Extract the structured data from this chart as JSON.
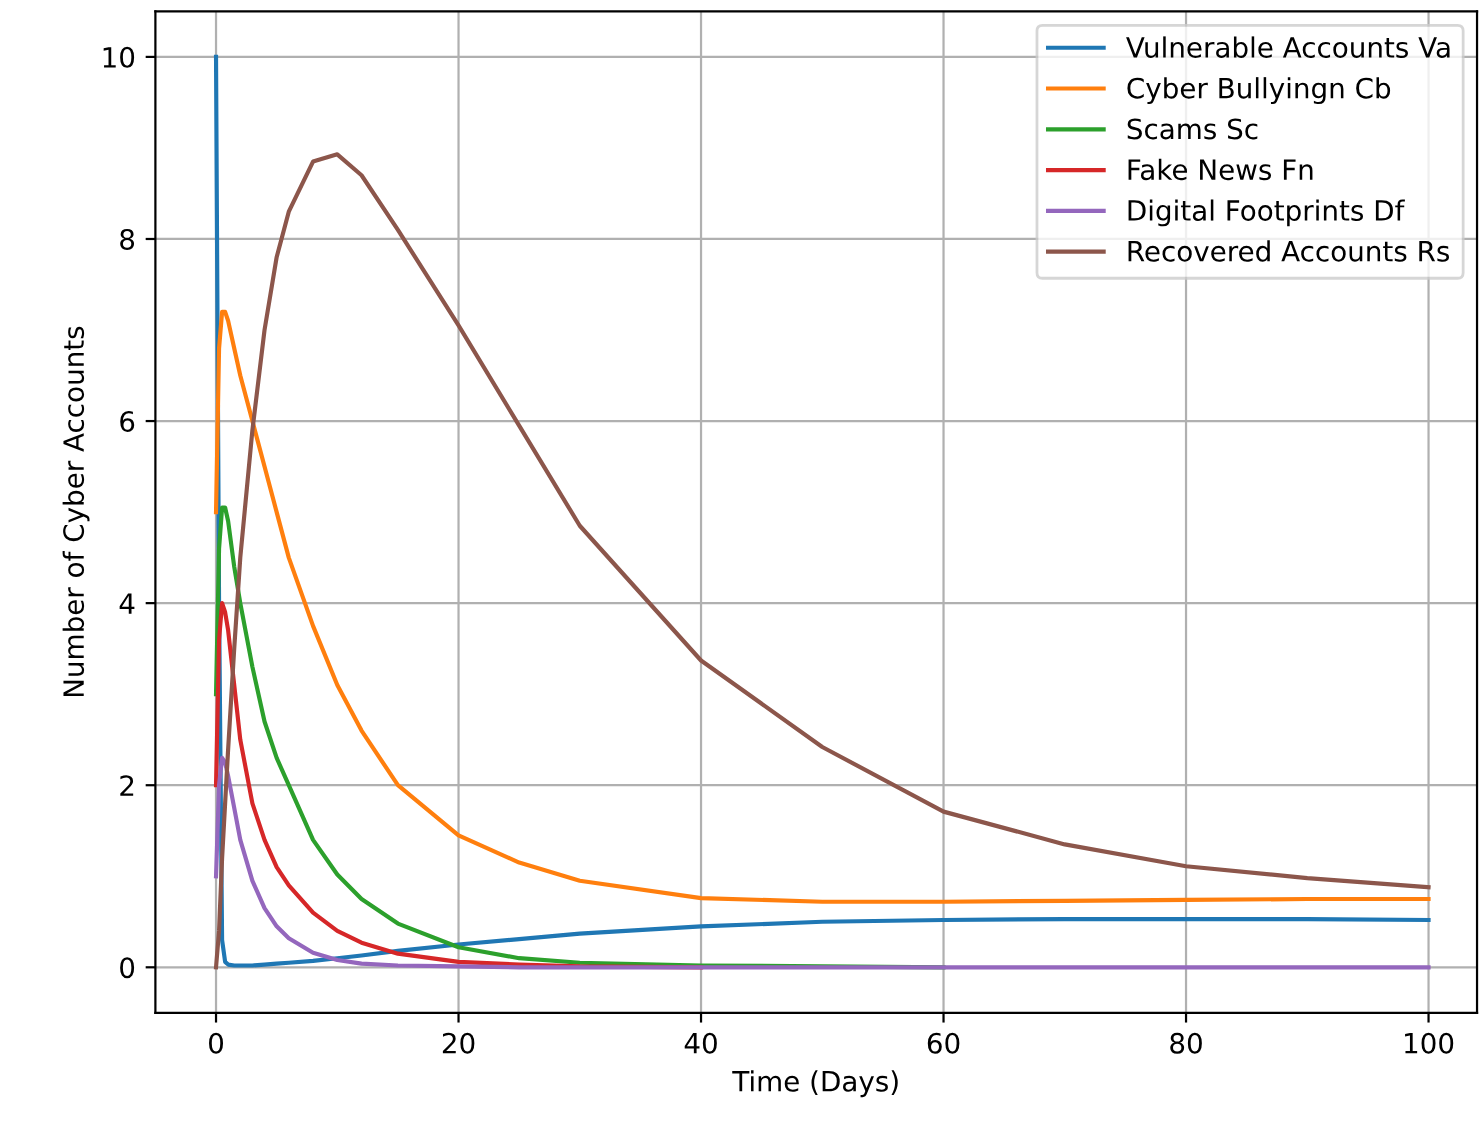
{
  "chart_data": {
    "type": "line",
    "xlabel": "Time (Days)",
    "ylabel": "Number of Cyber Accounts",
    "x": [
      0,
      0.25,
      0.5,
      0.75,
      1,
      1.5,
      2,
      3,
      4,
      5,
      6,
      8,
      10,
      12,
      15,
      20,
      25,
      30,
      40,
      50,
      60,
      70,
      80,
      90,
      100
    ],
    "series": [
      {
        "name": "Vulnerable Accounts Va",
        "color": "#1f77b4",
        "values": [
          10,
          4,
          0.3,
          0.06,
          0.03,
          0.02,
          0.02,
          0.02,
          0.03,
          0.04,
          0.05,
          0.07,
          0.1,
          0.13,
          0.18,
          0.25,
          0.31,
          0.37,
          0.45,
          0.5,
          0.52,
          0.53,
          0.53,
          0.53,
          0.52
        ]
      },
      {
        "name": "Cyber Bullyingn Cb",
        "color": "#ff7f0e",
        "values": [
          5.0,
          6.8,
          7.2,
          7.2,
          7.1,
          6.8,
          6.5,
          6.0,
          5.5,
          5.0,
          4.5,
          3.75,
          3.1,
          2.6,
          2.0,
          1.45,
          1.15,
          0.95,
          0.76,
          0.72,
          0.72,
          0.73,
          0.74,
          0.75,
          0.75
        ]
      },
      {
        "name": "Scams Sc",
        "color": "#2ca02c",
        "values": [
          3.0,
          4.6,
          5.05,
          5.05,
          4.9,
          4.4,
          4.0,
          3.3,
          2.7,
          2.3,
          2.0,
          1.4,
          1.02,
          0.75,
          0.48,
          0.22,
          0.1,
          0.05,
          0.02,
          0.01,
          0,
          null,
          null,
          null,
          null
        ]
      },
      {
        "name": "Fake News Fn",
        "color": "#d62728",
        "values": [
          2.0,
          3.6,
          4.0,
          3.9,
          3.7,
          3.1,
          2.5,
          1.8,
          1.4,
          1.1,
          0.9,
          0.6,
          0.4,
          0.27,
          0.15,
          0.06,
          0.03,
          0.01,
          0,
          null,
          null,
          null,
          null,
          null,
          null
        ]
      },
      {
        "name": "Digital Footprints Df",
        "color": "#9467bd",
        "values": [
          1.0,
          2.0,
          2.3,
          2.25,
          2.1,
          1.75,
          1.4,
          0.95,
          0.65,
          0.45,
          0.32,
          0.16,
          0.08,
          0.04,
          0.02,
          0.01,
          0,
          0,
          0,
          0,
          0,
          0,
          0,
          0,
          0
        ]
      },
      {
        "name": "Recovered Accounts Rs",
        "color": "#8c564b",
        "values": [
          0,
          0.4,
          1.2,
          1.8,
          2.4,
          3.5,
          4.5,
          5.9,
          7.0,
          7.8,
          8.3,
          8.85,
          8.93,
          8.7,
          8.1,
          7.05,
          5.95,
          4.85,
          3.37,
          2.42,
          1.71,
          1.35,
          1.11,
          0.98,
          0.88
        ]
      }
    ],
    "xlim": [
      -5,
      104
    ],
    "ylim": [
      -0.5,
      10.5
    ],
    "xticks": [
      0,
      20,
      40,
      60,
      80,
      100
    ],
    "yticks": [
      0,
      2,
      4,
      6,
      8,
      10
    ],
    "grid": true,
    "legend": "top right",
    "marker": "none",
    "line_style": "solid"
  }
}
